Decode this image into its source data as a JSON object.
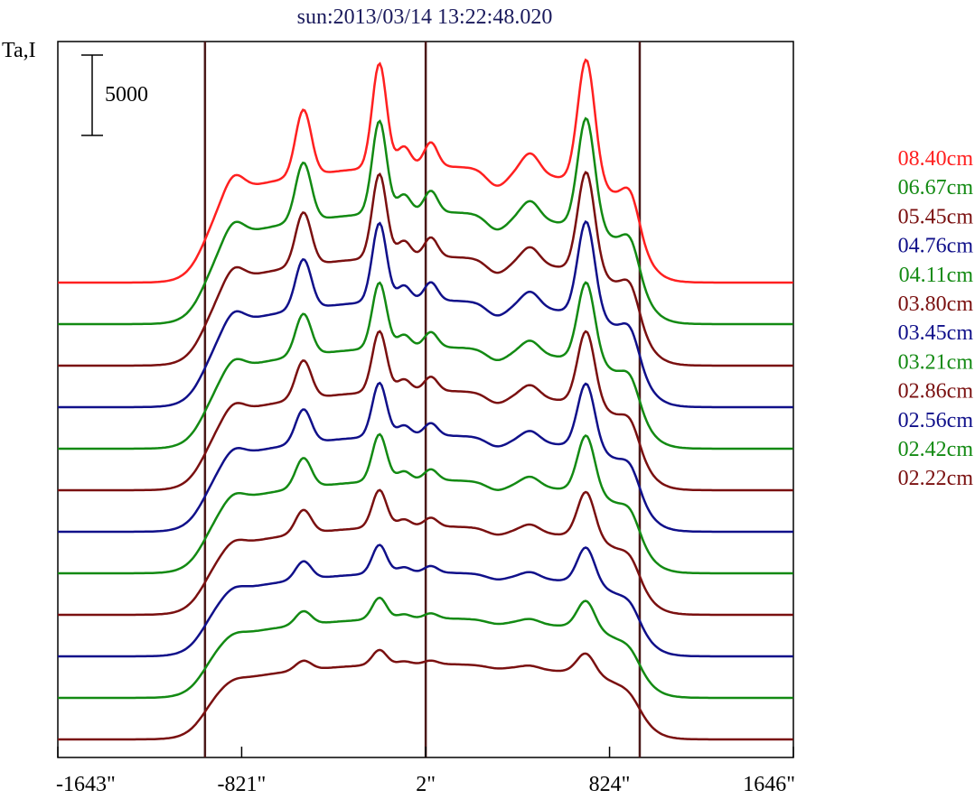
{
  "chart_data": {
    "type": "line",
    "title": "sun:2013/03/14 13:22:48.020",
    "ylabel": "Ta,I",
    "xlabel": "",
    "scale_bar": {
      "label": "5000",
      "value": 5000
    },
    "xlim": [
      -1643,
      1646
    ],
    "x_ticks": [
      {
        "value": -1643,
        "label": "-1643\""
      },
      {
        "value": -821,
        "label": "-821\""
      },
      {
        "value": 2,
        "label": "2\""
      },
      {
        "value": 824,
        "label": "824\""
      },
      {
        "value": 1646,
        "label": "1646\""
      }
    ],
    "vertical_lines": [
      -985,
      2,
      959
    ],
    "legend_position": "right",
    "series": [
      {
        "name": "08.40cm",
        "color": "#ff2020",
        "baseline_index": 0,
        "scale": 1.0
      },
      {
        "name": "06.67cm",
        "color": "#138a13",
        "baseline_index": 1,
        "scale": 0.92
      },
      {
        "name": "05.45cm",
        "color": "#7a1010",
        "baseline_index": 2,
        "scale": 0.86
      },
      {
        "name": "04.76cm",
        "color": "#10108a",
        "baseline_index": 3,
        "scale": 0.82
      },
      {
        "name": "04.11cm",
        "color": "#138a13",
        "baseline_index": 4,
        "scale": 0.72
      },
      {
        "name": "03.80cm",
        "color": "#7a1010",
        "baseline_index": 5,
        "scale": 0.68
      },
      {
        "name": "03.45cm",
        "color": "#10108a",
        "baseline_index": 6,
        "scale": 0.62
      },
      {
        "name": "03.21cm",
        "color": "#138a13",
        "baseline_index": 7,
        "scale": 0.56
      },
      {
        "name": "02.86cm",
        "color": "#7a1010",
        "baseline_index": 8,
        "scale": 0.47
      },
      {
        "name": "02.56cm",
        "color": "#10108a",
        "baseline_index": 9,
        "scale": 0.38
      },
      {
        "name": "02.42cm",
        "color": "#138a13",
        "baseline_index": 10,
        "scale": 0.3
      },
      {
        "name": "02.22cm",
        "color": "#7a1010",
        "baseline_index": 11,
        "scale": 0.22
      }
    ]
  }
}
